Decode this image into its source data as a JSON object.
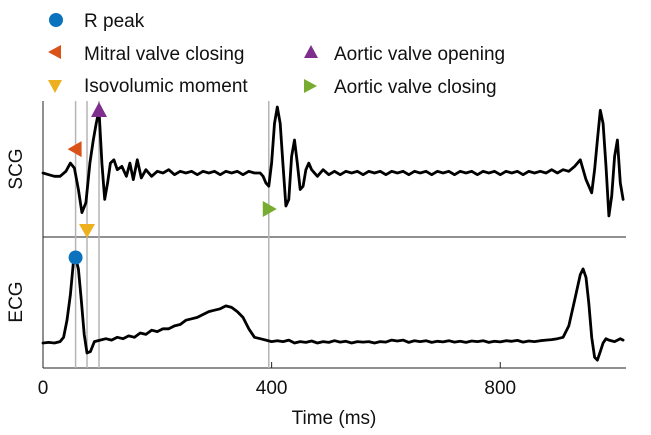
{
  "legend": {
    "items": [
      {
        "label": "R peak",
        "marker": "circle",
        "color": "#0b72bd"
      },
      {
        "label": "Mitral valve closing",
        "marker": "triangle-left",
        "color": "#d95319"
      },
      {
        "label": "Isovolumic moment",
        "marker": "triangle-down",
        "color": "#edb120"
      },
      {
        "label": "Aortic valve opening",
        "marker": "triangle-up",
        "color": "#7e2f8e"
      },
      {
        "label": "Aortic valve closing",
        "marker": "triangle-right",
        "color": "#77ac30"
      }
    ]
  },
  "chart_data": {
    "type": "line",
    "xlabel": "Time (ms)",
    "xlim": [
      0,
      1020
    ],
    "xticks": [
      0,
      400,
      800
    ],
    "xtick_labels": [
      "0",
      "400",
      "800"
    ],
    "panels": [
      {
        "name": "SCG",
        "ylabel": "SCG"
      },
      {
        "name": "ECG",
        "ylabel": "ECG"
      }
    ],
    "event_lines_ms": [
      57,
      77,
      98,
      395
    ],
    "events": [
      {
        "label": "R peak",
        "x": 57,
        "panel": "ECG"
      },
      {
        "label": "Mitral valve closing",
        "x": 57,
        "panel": "SCG"
      },
      {
        "label": "Isovolumic moment",
        "x": 77,
        "panel": "SCG"
      },
      {
        "label": "Aortic valve opening",
        "x": 98,
        "panel": "SCG"
      },
      {
        "label": "Aortic valve closing",
        "x": 395,
        "panel": "SCG"
      }
    ],
    "series": [
      {
        "panel": "SCG",
        "x": [
          0,
          10,
          20,
          30,
          40,
          48,
          55,
          62,
          68,
          75,
          82,
          88,
          93,
          98,
          103,
          108,
          113,
          118,
          124,
          130,
          138,
          146,
          152,
          158,
          165,
          172,
          180,
          190,
          200,
          210,
          220,
          230,
          240,
          250,
          260,
          270,
          280,
          290,
          300,
          310,
          320,
          330,
          340,
          350,
          360,
          370,
          380,
          385,
          390,
          395,
          400,
          405,
          410,
          415,
          420,
          425,
          430,
          435,
          440,
          445,
          450,
          455,
          460,
          465,
          470,
          480,
          490,
          500,
          510,
          520,
          530,
          540,
          550,
          560,
          570,
          580,
          590,
          600,
          610,
          620,
          630,
          640,
          650,
          660,
          670,
          680,
          690,
          700,
          710,
          720,
          730,
          740,
          750,
          760,
          770,
          780,
          790,
          800,
          810,
          820,
          830,
          840,
          850,
          860,
          870,
          880,
          890,
          900,
          910,
          920,
          930,
          940,
          950,
          960,
          965,
          970,
          975,
          980,
          985,
          990,
          995,
          1000,
          1005,
          1010,
          1015
        ],
        "y": [
          0,
          -0.05,
          -0.1,
          -0.1,
          0.05,
          0.3,
          0.15,
          -0.5,
          -1.2,
          -0.9,
          0.3,
          1.0,
          1.5,
          1.9,
          0.3,
          -0.8,
          -0.3,
          0.3,
          0.4,
          0.1,
          0.2,
          -0.1,
          0.3,
          -0.2,
          0.4,
          -0.15,
          0.1,
          -0.1,
          0.05,
          0,
          0.1,
          -0.05,
          0.05,
          0,
          0.05,
          -0.05,
          0.05,
          0,
          0.05,
          -0.05,
          0.05,
          0,
          0.05,
          -0.05,
          0.05,
          0,
          0,
          -0.1,
          -0.3,
          -0.4,
          0.3,
          1.5,
          2.0,
          1.5,
          0.2,
          -1.0,
          -0.8,
          0.5,
          1.0,
          0.3,
          -0.5,
          -0.4,
          0.1,
          0.3,
          0.1,
          -0.1,
          0.1,
          -0.05,
          0.05,
          -0.05,
          0.05,
          0,
          0.05,
          -0.05,
          0.05,
          0,
          0.05,
          -0.05,
          0.05,
          0,
          0.05,
          -0.05,
          0.05,
          0,
          0.05,
          -0.05,
          0.05,
          0,
          0.05,
          -0.05,
          0.05,
          0,
          0.05,
          -0.05,
          0.05,
          0,
          0.05,
          -0.05,
          0.05,
          0,
          0.05,
          -0.05,
          0.05,
          0,
          0.05,
          0,
          0.1,
          0,
          0.1,
          0.05,
          0.2,
          0.4,
          -0.2,
          -0.6,
          0.1,
          1.0,
          1.9,
          1.5,
          0.2,
          -1.3,
          -0.7,
          0.5,
          1.0,
          -0.3,
          -0.8
        ]
      },
      {
        "panel": "ECG",
        "x": [
          0,
          10,
          20,
          30,
          36,
          42,
          48,
          53,
          57,
          62,
          67,
          72,
          77,
          83,
          90,
          100,
          110,
          120,
          130,
          140,
          150,
          160,
          170,
          180,
          190,
          200,
          210,
          220,
          230,
          240,
          250,
          260,
          270,
          280,
          290,
          300,
          310,
          320,
          330,
          340,
          350,
          360,
          370,
          380,
          390,
          400,
          410,
          420,
          430,
          440,
          450,
          460,
          470,
          480,
          490,
          500,
          510,
          520,
          530,
          540,
          550,
          560,
          570,
          580,
          590,
          600,
          610,
          620,
          630,
          640,
          650,
          660,
          670,
          680,
          690,
          700,
          710,
          720,
          730,
          740,
          750,
          760,
          770,
          780,
          790,
          800,
          810,
          820,
          830,
          840,
          850,
          860,
          870,
          880,
          890,
          900,
          910,
          920,
          930,
          940,
          945,
          950,
          955,
          960,
          965,
          970,
          975,
          980,
          985,
          990,
          1000,
          1010,
          1015
        ],
        "y": [
          0,
          0.02,
          0,
          0.05,
          0.2,
          0.8,
          1.7,
          2.8,
          3.0,
          2.6,
          1.5,
          0.3,
          -0.35,
          -0.3,
          0.05,
          0.1,
          0.15,
          0.1,
          0.2,
          0.15,
          0.25,
          0.2,
          0.35,
          0.3,
          0.45,
          0.4,
          0.5,
          0.5,
          0.6,
          0.65,
          0.8,
          0.85,
          0.9,
          1.0,
          1.1,
          1.15,
          1.2,
          1.3,
          1.25,
          1.1,
          0.9,
          0.5,
          0.2,
          0.15,
          0.1,
          0.05,
          0.08,
          0.05,
          0.1,
          0.0,
          0.05,
          0.02,
          0.07,
          0.0,
          0.05,
          0.02,
          0.08,
          0.03,
          0.06,
          0.0,
          0.05,
          0.03,
          0.05,
          0.0,
          0.05,
          0.03,
          0.1,
          0.07,
          0.1,
          0.02,
          0.08,
          0.05,
          0.08,
          0.02,
          0.06,
          0.04,
          0.08,
          0.03,
          0.06,
          0.02,
          0.07,
          0.05,
          0.08,
          0.02,
          0.06,
          0.04,
          0.08,
          0.06,
          0.09,
          0.03,
          0.07,
          0.05,
          0.08,
          0.1,
          0.12,
          0.15,
          0.2,
          0.6,
          1.5,
          2.4,
          2.6,
          2.3,
          1.4,
          0.2,
          -0.5,
          -0.6,
          -0.3,
          0.0,
          0.15,
          0.1,
          0.05,
          0.15,
          0.1
        ]
      }
    ]
  }
}
